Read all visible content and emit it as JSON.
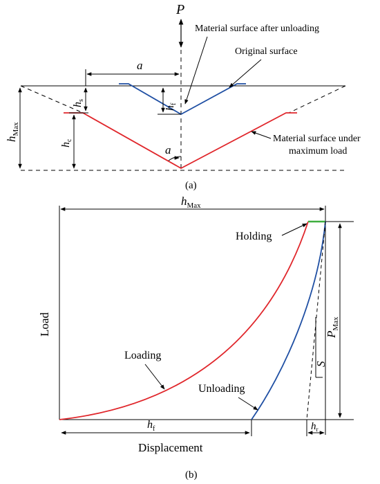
{
  "panel_a": {
    "labels": {
      "P": "P",
      "a": "a",
      "alpha": "a",
      "h_max": "h",
      "h_max_sub": "Max",
      "h_s": "h",
      "h_s_sub": "s",
      "h_c": "h",
      "h_c_sub": "c",
      "h_f": "h",
      "h_f_sub": "f",
      "surface_after_unloading": "Material surface after unloading",
      "original_surface": "Original surface",
      "surface_max_load_1": "Material surface under",
      "surface_max_load_2": "maximum load"
    },
    "caption": "(a)"
  },
  "panel_b": {
    "labels": {
      "h_max": "h",
      "h_max_sub": "Max",
      "holding": "Holding",
      "load_axis": "Load",
      "displacement_axis": "Displacement",
      "loading": "Loading",
      "unloading": "Unloading",
      "p_max": "P",
      "p_max_sub": "Max",
      "s": "S",
      "h_f": "h",
      "h_f_sub": "f",
      "h_r": "h",
      "h_r_sub": "r"
    },
    "caption": "(b)"
  },
  "colors": {
    "loading": "#e0262b",
    "unloading": "#1f4fa3",
    "holding": "#3fae3f",
    "line": "#000000"
  }
}
